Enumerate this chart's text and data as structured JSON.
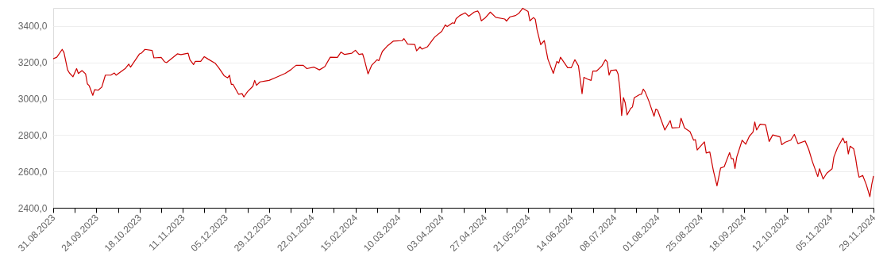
{
  "chart_data": {
    "type": "line",
    "color": "#cc0000",
    "grid": "y",
    "x": [
      "2023-08-31",
      "2023-09-02",
      "2023-09-05",
      "2023-09-06",
      "2023-09-08",
      "2023-09-09",
      "2023-09-11",
      "2023-09-13",
      "2023-09-14",
      "2023-09-16",
      "2023-09-18",
      "2023-09-19",
      "2023-09-20",
      "2023-09-22",
      "2023-09-23",
      "2023-09-25",
      "2023-09-27",
      "2023-09-29",
      "2023-10-02",
      "2023-10-04",
      "2023-10-05",
      "2023-10-10",
      "2023-10-12",
      "2023-10-13",
      "2023-10-18",
      "2023-10-19",
      "2023-10-21",
      "2023-10-25",
      "2023-10-26",
      "2023-10-30",
      "2023-11-01",
      "2023-11-02",
      "2023-11-08",
      "2023-11-10",
      "2023-11-14",
      "2023-11-15",
      "2023-11-17",
      "2023-11-18",
      "2023-11-21",
      "2023-11-23",
      "2023-11-25",
      "2023-11-29",
      "2023-12-01",
      "2023-12-04",
      "2023-12-06",
      "2023-12-07",
      "2023-12-08",
      "2023-12-09",
      "2023-12-12",
      "2023-12-14",
      "2023-12-15",
      "2023-12-17",
      "2023-12-20",
      "2023-12-21",
      "2023-12-22",
      "2023-12-24",
      "2023-12-27",
      "2023-12-29",
      "2024-01-02",
      "2024-01-07",
      "2024-01-10",
      "2024-01-13",
      "2024-01-17",
      "2024-01-19",
      "2024-01-23",
      "2024-01-26",
      "2024-01-29",
      "2024-02-01",
      "2024-02-05",
      "2024-02-07",
      "2024-02-09",
      "2024-02-13",
      "2024-02-15",
      "2024-02-17",
      "2024-02-19",
      "2024-02-20",
      "2024-02-22",
      "2024-02-24",
      "2024-02-27",
      "2024-02-28",
      "2024-03-01",
      "2024-03-04",
      "2024-03-07",
      "2024-03-12",
      "2024-03-13",
      "2024-03-15",
      "2024-03-19",
      "2024-03-20",
      "2024-03-22",
      "2024-03-23",
      "2024-03-26",
      "2024-03-30",
      "2024-04-03",
      "2024-04-05",
      "2024-04-06",
      "2024-04-09",
      "2024-04-10",
      "2024-04-11",
      "2024-04-13",
      "2024-04-16",
      "2024-04-18",
      "2024-04-21",
      "2024-04-23",
      "2024-04-24",
      "2024-04-25",
      "2024-04-27",
      "2024-04-30",
      "2024-05-03",
      "2024-05-08",
      "2024-05-09",
      "2024-05-11",
      "2024-05-14",
      "2024-05-16",
      "2024-05-18",
      "2024-05-21",
      "2024-05-22",
      "2024-05-24",
      "2024-05-25",
      "2024-05-26",
      "2024-05-28",
      "2024-05-30",
      "2024-06-01",
      "2024-06-04",
      "2024-06-06",
      "2024-06-07",
      "2024-06-08",
      "2024-06-12",
      "2024-06-14",
      "2024-06-16",
      "2024-06-18",
      "2024-06-20",
      "2024-06-21",
      "2024-06-23",
      "2024-06-25",
      "2024-06-26",
      "2024-06-28",
      "2024-07-01",
      "2024-07-03",
      "2024-07-04",
      "2024-07-05",
      "2024-07-06",
      "2024-07-09",
      "2024-07-10",
      "2024-07-11",
      "2024-07-12",
      "2024-07-13",
      "2024-07-14",
      "2024-07-15",
      "2024-07-17",
      "2024-07-18",
      "2024-07-19",
      "2024-07-22",
      "2024-07-23",
      "2024-07-24",
      "2024-07-25",
      "2024-07-27",
      "2024-07-30",
      "2024-07-31",
      "2024-08-01",
      "2024-08-05",
      "2024-08-08",
      "2024-08-09",
      "2024-08-13",
      "2024-08-14",
      "2024-08-16",
      "2024-08-19",
      "2024-08-21",
      "2024-08-22",
      "2024-08-23",
      "2024-08-27",
      "2024-08-28",
      "2024-08-30",
      "2024-09-01",
      "2024-09-03",
      "2024-09-05",
      "2024-09-07",
      "2024-09-10",
      "2024-09-11",
      "2024-09-12",
      "2024-09-13",
      "2024-09-14",
      "2024-09-17",
      "2024-09-19",
      "2024-09-21",
      "2024-09-23",
      "2024-09-24",
      "2024-09-25",
      "2024-09-27",
      "2024-09-30",
      "2024-10-02",
      "2024-10-04",
      "2024-10-08",
      "2024-10-09",
      "2024-10-11",
      "2024-10-14",
      "2024-10-16",
      "2024-10-18",
      "2024-10-22",
      "2024-10-24",
      "2024-10-26",
      "2024-10-29",
      "2024-10-30",
      "2024-11-01",
      "2024-11-03",
      "2024-11-06",
      "2024-11-07",
      "2024-11-09",
      "2024-11-12",
      "2024-11-13",
      "2024-11-14",
      "2024-11-15",
      "2024-11-16",
      "2024-11-18",
      "2024-11-19",
      "2024-11-20",
      "2024-11-21",
      "2024-11-23",
      "2024-11-25",
      "2024-11-27",
      "2024-11-28",
      "2024-11-29"
    ],
    "values": [
      3220,
      3229,
      3272,
      3254,
      3159,
      3142,
      3121,
      3166,
      3139,
      3155,
      3137,
      3082,
      3072,
      3019,
      3050,
      3047,
      3064,
      3130,
      3130,
      3142,
      3130,
      3166,
      3191,
      3174,
      3247,
      3251,
      3272,
      3266,
      3225,
      3228,
      3203,
      3199,
      3247,
      3243,
      3251,
      3215,
      3188,
      3206,
      3206,
      3232,
      3219,
      3196,
      3171,
      3127,
      3115,
      3130,
      3079,
      3079,
      3025,
      3028,
      3010,
      3039,
      3069,
      3101,
      3074,
      3093,
      3098,
      3101,
      3118,
      3140,
      3159,
      3184,
      3184,
      3166,
      3174,
      3159,
      3177,
      3229,
      3228,
      3257,
      3244,
      3251,
      3267,
      3244,
      3247,
      3215,
      3137,
      3184,
      3215,
      3210,
      3261,
      3293,
      3317,
      3320,
      3331,
      3301,
      3299,
      3264,
      3286,
      3273,
      3286,
      3339,
      3371,
      3407,
      3397,
      3418,
      3415,
      3441,
      3458,
      3473,
      3454,
      3477,
      3483,
      3466,
      3429,
      3444,
      3477,
      3448,
      3439,
      3428,
      3451,
      3458,
      3472,
      3498,
      3480,
      3429,
      3447,
      3437,
      3378,
      3298,
      3320,
      3218,
      3140,
      3206,
      3196,
      3229,
      3171,
      3171,
      3215,
      3181,
      3028,
      3118,
      3108,
      3101,
      3152,
      3152,
      3181,
      3215,
      3203,
      3130,
      3156,
      3159,
      3137,
      3057,
      2908,
      3006,
      2977,
      2911,
      2947,
      2955,
      3006,
      3023,
      3025,
      3053,
      3039,
      2991,
      2904,
      2943,
      2937,
      2828,
      2880,
      2839,
      2842,
      2893,
      2839,
      2819,
      2772,
      2775,
      2718,
      2763,
      2702,
      2707,
      2604,
      2521,
      2619,
      2626,
      2704,
      2670,
      2670,
      2616,
      2680,
      2772,
      2750,
      2794,
      2816,
      2872,
      2828,
      2860,
      2857,
      2765,
      2801,
      2790,
      2747,
      2761,
      2772,
      2804,
      2753,
      2768,
      2721,
      2655,
      2572,
      2615,
      2558,
      2590,
      2615,
      2680,
      2731,
      2784,
      2758,
      2766,
      2696,
      2739,
      2724,
      2677,
      2612,
      2568,
      2578,
      2527,
      2461,
      2527,
      2575
    ],
    "xlim": [
      "2023-08-31",
      "2024-11-29"
    ],
    "ylim": [
      2400,
      3500
    ],
    "yticks": [
      {
        "value": 2400,
        "label": "2400,0"
      },
      {
        "value": 2600,
        "label": "2600,0"
      },
      {
        "value": 2800,
        "label": "2800,0"
      },
      {
        "value": 3000,
        "label": "3000,0"
      },
      {
        "value": 3200,
        "label": "3200,0"
      },
      {
        "value": 3400,
        "label": "3400,0"
      }
    ],
    "xticks": [
      {
        "value": "2023-08-31",
        "label": "31.08.2023"
      },
      {
        "value": "2023-09-12",
        "label": null
      },
      {
        "value": "2023-09-24",
        "label": "24.09.2023"
      },
      {
        "value": "2023-10-06",
        "label": null
      },
      {
        "value": "2023-10-18",
        "label": "18.10.2023"
      },
      {
        "value": "2023-10-30",
        "label": null
      },
      {
        "value": "2023-11-11",
        "label": "11.11.2023"
      },
      {
        "value": "2023-11-23",
        "label": null
      },
      {
        "value": "2023-12-05",
        "label": "05.12.2023"
      },
      {
        "value": "2023-12-17",
        "label": null
      },
      {
        "value": "2023-12-29",
        "label": "29.12.2023"
      },
      {
        "value": "2024-01-10",
        "label": null
      },
      {
        "value": "2024-01-22",
        "label": "22.01.2024"
      },
      {
        "value": "2024-02-03",
        "label": null
      },
      {
        "value": "2024-02-15",
        "label": "15.02.2024"
      },
      {
        "value": "2024-02-27",
        "label": null
      },
      {
        "value": "2024-03-10",
        "label": "10.03.2024"
      },
      {
        "value": "2024-03-22",
        "label": null
      },
      {
        "value": "2024-04-03",
        "label": "03.04.2024"
      },
      {
        "value": "2024-04-15",
        "label": null
      },
      {
        "value": "2024-04-27",
        "label": "27.04.2024"
      },
      {
        "value": "2024-05-09",
        "label": null
      },
      {
        "value": "2024-05-21",
        "label": "21.05.2024"
      },
      {
        "value": "2024-06-02",
        "label": null
      },
      {
        "value": "2024-06-14",
        "label": "14.06.2024"
      },
      {
        "value": "2024-06-26",
        "label": null
      },
      {
        "value": "2024-07-08",
        "label": "08.07.2024"
      },
      {
        "value": "2024-07-20",
        "label": null
      },
      {
        "value": "2024-08-01",
        "label": "01.08.2024"
      },
      {
        "value": "2024-08-13",
        "label": null
      },
      {
        "value": "2024-08-25",
        "label": "25.08.2024"
      },
      {
        "value": "2024-09-06",
        "label": null
      },
      {
        "value": "2024-09-18",
        "label": "18.09.2024"
      },
      {
        "value": "2024-09-30",
        "label": null
      },
      {
        "value": "2024-10-12",
        "label": "12.10.2024"
      },
      {
        "value": "2024-10-24",
        "label": null
      },
      {
        "value": "2024-11-05",
        "label": "05.11.2024"
      },
      {
        "value": "2024-11-17",
        "label": null
      },
      {
        "value": "2024-11-29",
        "label": "29.11.2024"
      }
    ]
  }
}
